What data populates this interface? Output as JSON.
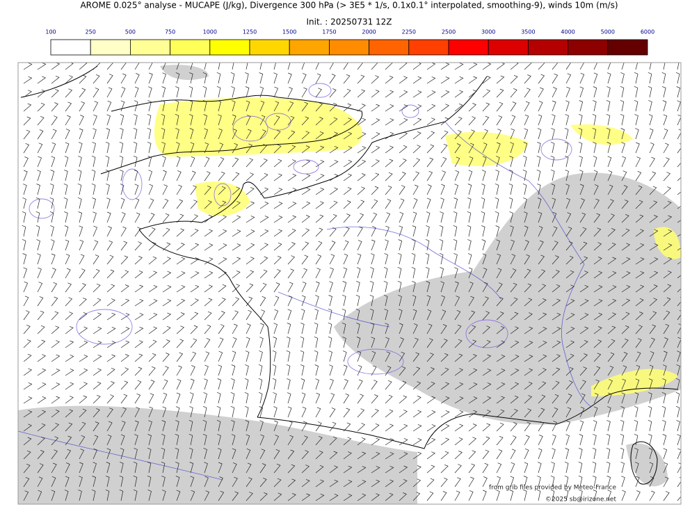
{
  "header": {
    "title": "AROME 0.025° analyse - MUCAPE (J/kg), Divergence 300 hPa (> 3E5 * 1/s, 0.1x0.1° interpolated, smoothing-9), winds 10m (m/s)",
    "init": "Init. : 20250731 12Z"
  },
  "colorbar": {
    "ticks": [
      100,
      250,
      500,
      750,
      1000,
      1250,
      1500,
      1750,
      2000,
      2250,
      2500,
      3000,
      3500,
      4000,
      5000,
      6000
    ],
    "colors": [
      "#ffffff",
      "#ffffc8",
      "#ffff96",
      "#ffff5a",
      "#ffff00",
      "#ffd700",
      "#ffa500",
      "#ff8c00",
      "#ff6400",
      "#ff4000",
      "#ff0000",
      "#dc0000",
      "#b40000",
      "#8c0000",
      "#640000"
    ]
  },
  "credits": {
    "source": "from grib files provided by Meteo-France",
    "copyright": "©2025 sb@irizone.net"
  }
}
